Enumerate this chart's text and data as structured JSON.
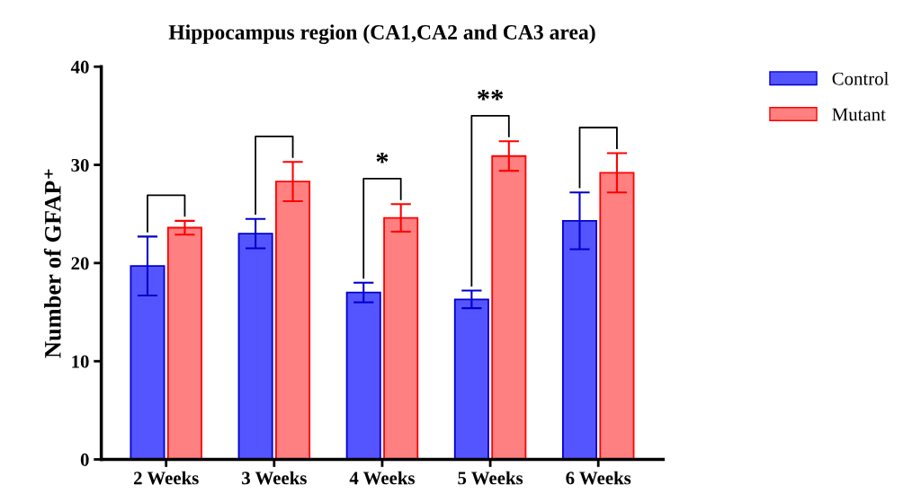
{
  "chart_data": {
    "type": "bar",
    "title": "Hippocampus region (CA1,CA2 and CA3 area)",
    "ylabel": "Number of GFAP⁺",
    "categories": [
      "2 Weeks",
      "3 Weeks",
      "4 Weeks",
      "5 Weeks",
      "6 Weeks"
    ],
    "series": [
      {
        "name": "Control",
        "color": "#5555ff",
        "values": [
          19.7,
          23.0,
          17.0,
          16.3,
          24.3
        ],
        "errors": [
          3.0,
          1.5,
          1.0,
          0.9,
          2.9
        ]
      },
      {
        "name": "Mutant",
        "color": "#ff8080",
        "values": [
          23.6,
          28.3,
          24.6,
          30.9,
          29.2
        ],
        "errors": [
          0.7,
          2.0,
          1.4,
          1.5,
          2.0
        ]
      }
    ],
    "annotations": [
      "*",
      "**"
    ],
    "ylim": [
      0,
      40
    ],
    "yticks": [
      0,
      10,
      20,
      30,
      40
    ],
    "grid": false,
    "legend": "top right"
  }
}
